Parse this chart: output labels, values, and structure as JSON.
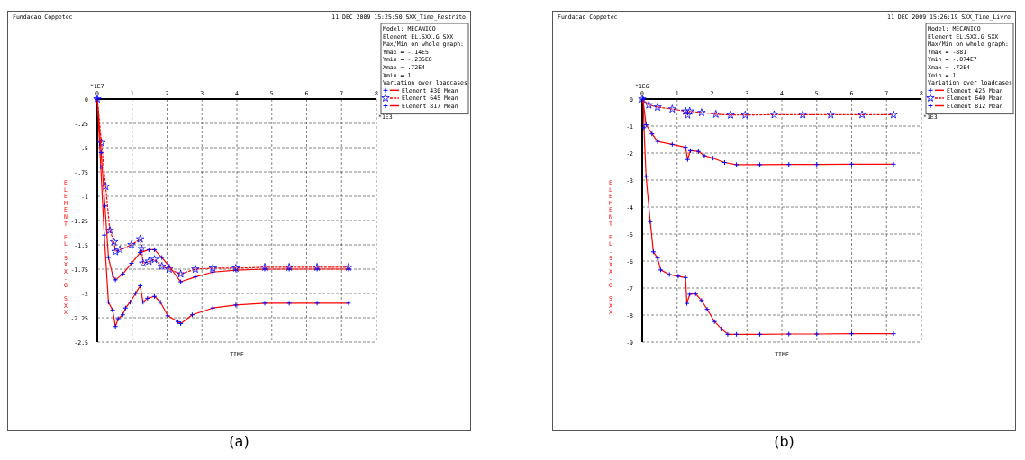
{
  "chart_data": [
    {
      "type": "line",
      "title": "Fundacao Coppetec",
      "subtitle": "11 DEC 2009 15:25:50 SXX_Time_Restrito",
      "xlabel": "TIME",
      "ylabel": "ELEMENT EL.SXX.G SXX",
      "xlim": [
        0,
        8
      ],
      "xticks": [
        0,
        1,
        2,
        3,
        4,
        5,
        6,
        7,
        8
      ],
      "ylim": [
        -2.5,
        0
      ],
      "yticks": [
        {
          "value": 0,
          "label": "0"
        },
        {
          "value": -0.25,
          "label": "-.25"
        },
        {
          "value": -0.5,
          "label": "-.5"
        },
        {
          "value": -0.75,
          "label": "-.75"
        },
        {
          "value": -1,
          "label": "-1"
        },
        {
          "value": -1.25,
          "label": "-1.25"
        },
        {
          "value": -1.5,
          "label": "-1.5"
        },
        {
          "value": -1.75,
          "label": "-1.75"
        },
        {
          "value": -2,
          "label": "-2"
        },
        {
          "value": -2.25,
          "label": "-2.25"
        },
        {
          "value": -2.5,
          "label": "-2.5"
        }
      ],
      "grid": true,
      "legend": "top right",
      "legend_title": "Variation over loadcases",
      "annotations": [
        "*1E7",
        "*1E3",
        "Model: MECANICO",
        "Element EL.SXX.G SXX",
        "Max/Min on whole graph:",
        "Ymax = -.14E5",
        "Ymin = -.235E8",
        "Xmax = .72E4",
        "Xmin = 1",
        "(a)"
      ],
      "series": [
        {
          "name": "Element 430 Mean",
          "color": "#ff0000",
          "marker": "cross",
          "line_style": "solid",
          "x": [
            0,
            0.1,
            0.2,
            0.32,
            0.44,
            0.52,
            0.6,
            0.73,
            0.81,
            0.94,
            1.1,
            1.23,
            1.31,
            1.44,
            1.64,
            1.81,
            2.02,
            2.31,
            2.39,
            2.72,
            3.31,
            3.97,
            4.8,
            5.5,
            6.3,
            7.2
          ],
          "values": [
            0,
            -0.7,
            -1.4,
            -2.09,
            -2.17,
            -2.34,
            -2.26,
            -2.22,
            -2.15,
            -2.09,
            -2.0,
            -1.92,
            -2.09,
            -2.05,
            -2.03,
            -2.09,
            -2.23,
            -2.29,
            -2.31,
            -2.22,
            -2.15,
            -2.12,
            -2.1,
            -2.1,
            -2.1,
            -2.1
          ]
        },
        {
          "name": "Element 645 Mean",
          "color": "#ff0000",
          "marker": "star",
          "line_style": "dashed",
          "x": [
            0,
            0.12,
            0.24,
            0.36,
            0.48,
            0.52,
            0.65,
            0.98,
            1.23,
            1.27,
            1.31,
            1.48,
            1.64,
            1.85,
            2.06,
            2.39,
            2.81,
            3.31,
            3.97,
            4.8,
            5.5,
            6.3,
            7.2
          ],
          "values": [
            0,
            -0.45,
            -0.9,
            -1.35,
            -1.47,
            -1.57,
            -1.55,
            -1.5,
            -1.44,
            -1.54,
            -1.69,
            -1.67,
            -1.65,
            -1.72,
            -1.75,
            -1.8,
            -1.75,
            -1.74,
            -1.74,
            -1.73,
            -1.73,
            -1.73,
            -1.73
          ]
        },
        {
          "name": "Element 817 Mean",
          "color": "#ff0000",
          "marker": "cross",
          "line_style": "solid",
          "x": [
            0,
            0.11,
            0.22,
            0.32,
            0.44,
            0.52,
            0.73,
            0.98,
            1.23,
            1.48,
            1.64,
            1.85,
            2.06,
            2.39,
            2.81,
            3.31,
            3.97,
            4.8,
            5.5,
            6.3,
            7.2
          ],
          "values": [
            0,
            -0.55,
            -1.1,
            -1.63,
            -1.81,
            -1.86,
            -1.8,
            -1.69,
            -1.58,
            -1.55,
            -1.55,
            -1.63,
            -1.72,
            -1.88,
            -1.83,
            -1.78,
            -1.76,
            -1.75,
            -1.75,
            -1.75,
            -1.75
          ]
        }
      ]
    },
    {
      "type": "line",
      "title": "Fundacao Coppetec",
      "subtitle": "11 DEC 2009 15:26:19 SXX_Time_Livre",
      "xlabel": "TIME",
      "ylabel": "ELEMENT EL.SXX.G SXX",
      "xlim": [
        0,
        8
      ],
      "xticks": [
        0,
        1,
        2,
        3,
        4,
        5,
        6,
        7,
        8
      ],
      "ylim": [
        -9,
        0
      ],
      "yticks": [
        0,
        -1,
        -2,
        -3,
        -4,
        -5,
        -6,
        -7,
        -8,
        -9
      ],
      "grid": true,
      "legend": "top right",
      "legend_title": "Variation over loadcases",
      "annotations": [
        "*1E6",
        "*1E3",
        "Model: MECANICO",
        "Element EL.SXX.G SXX",
        "Max/Min on whole graph:",
        "Ymax = -881",
        "Ymin = -.874E7",
        "Xmax = .72E4",
        "Xmin = 1",
        "(b)"
      ],
      "series": [
        {
          "name": "Element 425 Mean",
          "color": "#ff0000",
          "marker": "cross",
          "line_style": "solid",
          "x": [
            0.03,
            0.05,
            0.11,
            0.23,
            0.32,
            0.44,
            0.53,
            0.78,
            1.03,
            1.24,
            1.28,
            1.36,
            1.53,
            1.7,
            1.86,
            2.07,
            2.28,
            2.45,
            2.7,
            3.37,
            4.2,
            5.0,
            6.0,
            7.2
          ],
          "values": [
            0,
            -1.06,
            -2.86,
            -4.54,
            -5.66,
            -5.89,
            -6.33,
            -6.5,
            -6.56,
            -6.61,
            -7.57,
            -7.23,
            -7.21,
            -7.46,
            -7.79,
            -8.24,
            -8.52,
            -8.71,
            -8.71,
            -8.71,
            -8.7,
            -8.7,
            -8.69,
            -8.69
          ]
        },
        {
          "name": "Element 640 Mean",
          "color": "#ff0000",
          "marker": "star",
          "line_style": "dashed",
          "x": [
            0,
            0.19,
            0.44,
            0.86,
            1.24,
            1.3,
            1.36,
            1.7,
            2.11,
            2.53,
            2.95,
            3.78,
            4.6,
            5.4,
            6.3,
            7.2
          ],
          "values": [
            0,
            -0.22,
            -0.3,
            -0.37,
            -0.45,
            -0.59,
            -0.45,
            -0.5,
            -0.56,
            -0.59,
            -0.59,
            -0.58,
            -0.58,
            -0.58,
            -0.58,
            -0.58
          ]
        },
        {
          "name": "Element 812 Mean",
          "color": "#ff0000",
          "marker": "cross",
          "line_style": "solid",
          "x": [
            0.02,
            0.11,
            0.28,
            0.44,
            0.86,
            1.24,
            1.3,
            1.38,
            1.61,
            1.78,
            2.03,
            2.36,
            2.7,
            3.37,
            4.2,
            5.0,
            6.0,
            7.2
          ],
          "values": [
            0,
            -0.95,
            -1.29,
            -1.57,
            -1.68,
            -1.79,
            -2.24,
            -1.91,
            -1.94,
            -2.1,
            -2.19,
            -2.35,
            -2.43,
            -2.43,
            -2.42,
            -2.42,
            -2.41,
            -2.41
          ]
        }
      ]
    }
  ]
}
